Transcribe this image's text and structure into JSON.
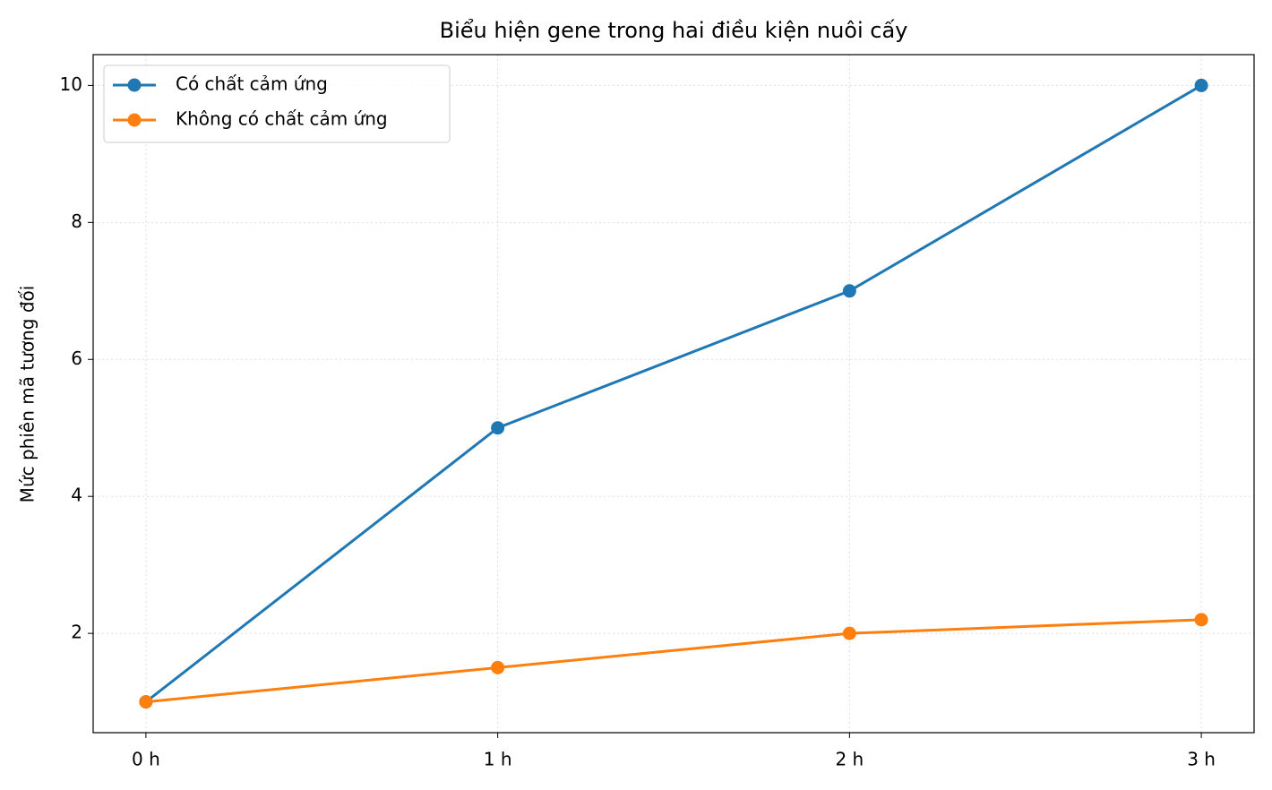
{
  "chart_data": {
    "type": "line",
    "title": "Biểu hiện gene trong hai điều kiện nuôi cấy",
    "y_label": "Mức phiên mã tương đối",
    "categories": [
      "0 h",
      "1 h",
      "2 h",
      "3 h"
    ],
    "series": [
      {
        "name": "Có chất cảm ứng",
        "color": "#1f77b4",
        "values": [
          1,
          5,
          7,
          10
        ]
      },
      {
        "name": "Không có chất cảm ứng",
        "color": "#ff7f0e",
        "values": [
          1,
          1.5,
          2,
          2.2
        ]
      }
    ],
    "ylim": [
      0.55,
      10.45
    ],
    "yticks": [
      2,
      4,
      6,
      8,
      10
    ],
    "grid": true,
    "legend": "upper left"
  }
}
